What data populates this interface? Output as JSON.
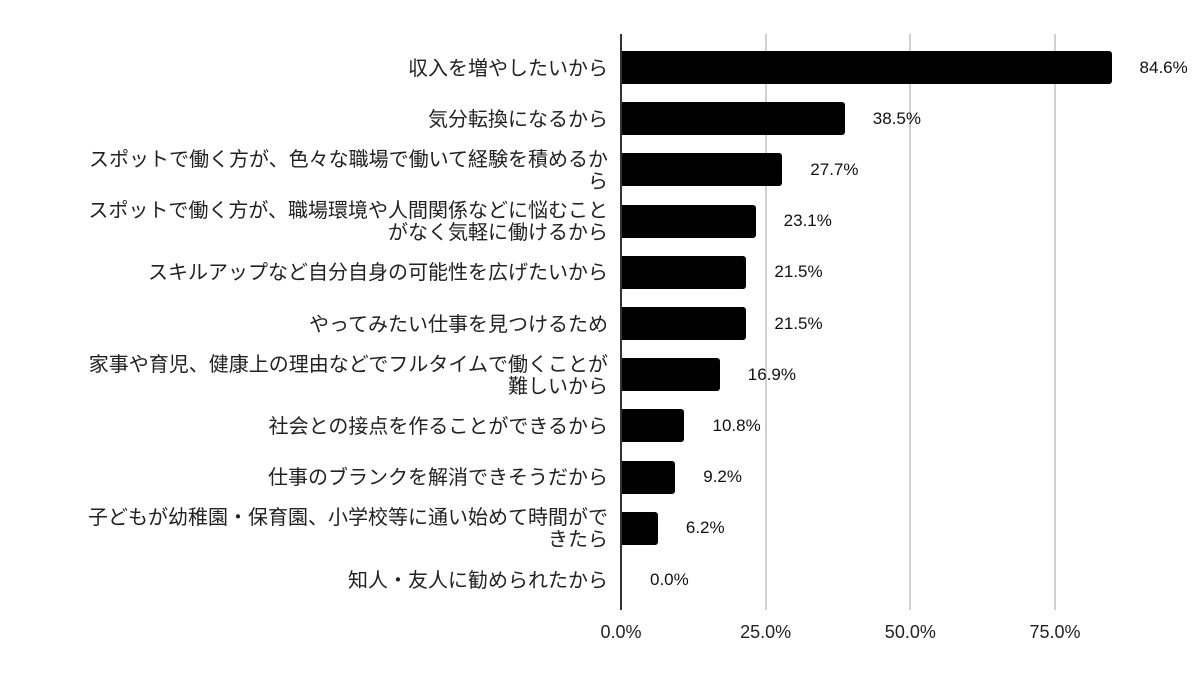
{
  "chart_data": {
    "type": "bar",
    "orientation": "horizontal",
    "title": "",
    "xlabel": "",
    "ylabel": "",
    "xlim": [
      0,
      90
    ],
    "grid": true,
    "legend": null,
    "bar_color": "#000000",
    "x_ticks": [
      "0.0%",
      "25.0%",
      "50.0%",
      "75.0%"
    ],
    "x_tick_values": [
      0,
      25,
      50,
      75
    ],
    "categories": [
      "収入を増やしたいから",
      "気分転換になるから",
      "スポットで働く方が、色々な職場で働いて経験を積めるか\nら",
      "スポットで働く方が、職場環境や人間関係などに悩むこと\nがなく気軽に働けるから",
      "スキルアップなど自分自身の可能性を広げたいから",
      "やってみたい仕事を見つけるため",
      "家事や育児、健康上の理由などでフルタイムで働くことが\n難しいから",
      "社会との接点を作ることができるから",
      "仕事のブランクを解消できそうだから",
      "子どもが幼稚園・保育園、小学校等に通い始めて時間がで\nきたら",
      "知人・友人に勧められたから"
    ],
    "values": [
      84.6,
      38.5,
      27.7,
      23.1,
      21.5,
      21.5,
      16.9,
      10.8,
      9.2,
      6.2,
      0.0
    ],
    "value_labels": [
      "84.6%",
      "38.5%",
      "27.7%",
      "23.1%",
      "21.5%",
      "21.5%",
      "16.9%",
      "10.8%",
      "9.2%",
      "6.2%",
      "0.0%"
    ]
  }
}
